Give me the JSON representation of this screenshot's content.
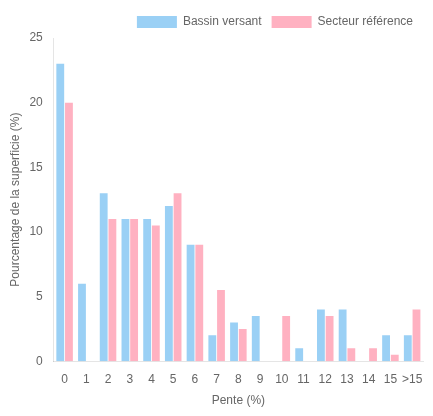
{
  "chart_data": {
    "type": "bar",
    "xlabel": "Pente (%)",
    "ylabel": "Pourcentage de la superficie (%)",
    "categories": [
      "0",
      "1",
      "2",
      "3",
      "4",
      "5",
      "6",
      "7",
      "8",
      "9",
      "10",
      "11",
      "12",
      "13",
      "14",
      "15",
      ">15"
    ],
    "series": [
      {
        "name": "Bassin versant",
        "values": [
          23.0,
          6.0,
          13.0,
          11.0,
          11.0,
          12.0,
          9.0,
          2.0,
          3.0,
          3.5,
          0.0,
          1.0,
          4.0,
          4.0,
          0.0,
          2.0,
          2.0
        ]
      },
      {
        "name": "Secteur référence",
        "values": [
          20.0,
          0.0,
          11.0,
          11.0,
          10.5,
          13.0,
          9.0,
          5.5,
          2.5,
          0.0,
          3.5,
          0.0,
          3.5,
          1.0,
          1.0,
          0.5,
          4.0
        ]
      }
    ],
    "ylim": [
      0,
      25
    ],
    "yticks": [
      0,
      5,
      10,
      15,
      20,
      25
    ],
    "legend": "upper right",
    "grid": false
  }
}
